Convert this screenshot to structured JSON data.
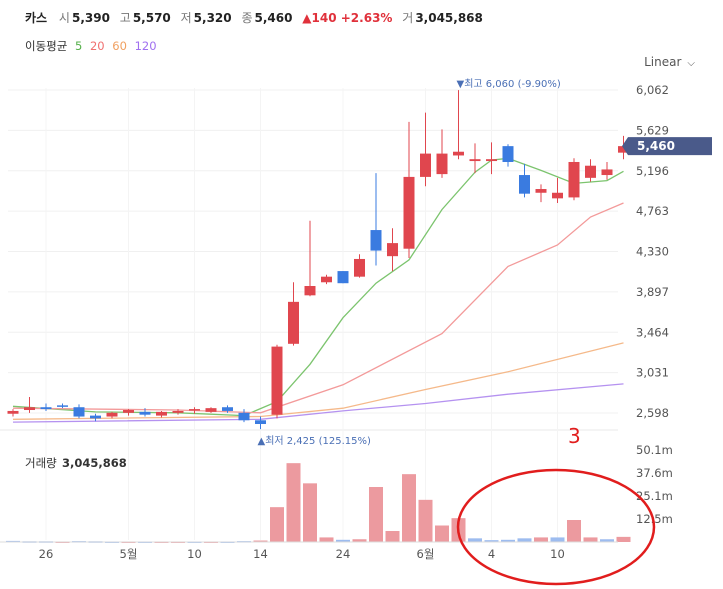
{
  "header": {
    "name": "카스",
    "open_label": "시",
    "open": "5,390",
    "high_label": "고",
    "high": "5,570",
    "low_label": "저",
    "low": "5,320",
    "close_label": "종",
    "close": "5,460",
    "change": "▲140 +2.63%",
    "volume_label": "거",
    "volume": "3,045,868"
  },
  "ma_legend": {
    "label": "이동평균",
    "items": [
      {
        "text": "5",
        "color": "#55b04a"
      },
      {
        "text": "20",
        "color": "#f07070"
      },
      {
        "text": "60",
        "color": "#f0a060"
      },
      {
        "text": "120",
        "color": "#a070f0"
      }
    ]
  },
  "scale_selector": {
    "label": "Linear",
    "icon": "chevron-down-icon"
  },
  "annotation": "3",
  "chart_data": {
    "type": "candlestick",
    "y_ticks": [
      "6,062",
      "5,629",
      "5,196",
      "4,763",
      "4,330",
      "3,897",
      "3,464",
      "3,031",
      "2,598"
    ],
    "ylim": [
      2440,
      6160
    ],
    "current_price_label": "5,460",
    "max_marker": "▼최고 6,060 (-9.90%)",
    "min_marker": "▲최저 2,425 (125.15%)",
    "x_tick_labels": [
      {
        "label": "26",
        "index": 2
      },
      {
        "label": "5월",
        "index": 7
      },
      {
        "label": "10",
        "index": 11
      },
      {
        "label": "14",
        "index": 15
      },
      {
        "label": "24",
        "index": 20
      },
      {
        "label": "6월",
        "index": 25
      },
      {
        "label": "4",
        "index": 29
      },
      {
        "label": "10",
        "index": 33
      }
    ],
    "candles": [
      {
        "o": 2590,
        "h": 2640,
        "l": 2560,
        "c": 2620
      },
      {
        "o": 2630,
        "h": 2770,
        "l": 2600,
        "c": 2660
      },
      {
        "o": 2660,
        "h": 2700,
        "l": 2620,
        "c": 2640
      },
      {
        "o": 2680,
        "h": 2700,
        "l": 2650,
        "c": 2670
      },
      {
        "o": 2660,
        "h": 2690,
        "l": 2540,
        "c": 2560
      },
      {
        "o": 2570,
        "h": 2590,
        "l": 2510,
        "c": 2540
      },
      {
        "o": 2560,
        "h": 2610,
        "l": 2540,
        "c": 2600
      },
      {
        "o": 2600,
        "h": 2640,
        "l": 2570,
        "c": 2630
      },
      {
        "o": 2610,
        "h": 2650,
        "l": 2560,
        "c": 2580
      },
      {
        "o": 2570,
        "h": 2620,
        "l": 2550,
        "c": 2610
      },
      {
        "o": 2600,
        "h": 2640,
        "l": 2580,
        "c": 2620
      },
      {
        "o": 2640,
        "h": 2660,
        "l": 2590,
        "c": 2640
      },
      {
        "o": 2610,
        "h": 2660,
        "l": 2600,
        "c": 2650
      },
      {
        "o": 2660,
        "h": 2680,
        "l": 2600,
        "c": 2620
      },
      {
        "o": 2600,
        "h": 2640,
        "l": 2500,
        "c": 2520
      },
      {
        "o": 2520,
        "h": 2560,
        "l": 2425,
        "c": 2480
      },
      {
        "o": 2580,
        "h": 3330,
        "l": 2540,
        "c": 3310
      },
      {
        "o": 3340,
        "h": 4000,
        "l": 3320,
        "c": 3790
      },
      {
        "o": 3860,
        "h": 4660,
        "l": 3850,
        "c": 3960
      },
      {
        "o": 4000,
        "h": 4080,
        "l": 3980,
        "c": 4060
      },
      {
        "o": 4120,
        "h": 4120,
        "l": 3990,
        "c": 3990
      },
      {
        "o": 4060,
        "h": 4300,
        "l": 4050,
        "c": 4250
      },
      {
        "o": 4560,
        "h": 5170,
        "l": 4180,
        "c": 4340
      },
      {
        "o": 4280,
        "h": 4580,
        "l": 4120,
        "c": 4420
      },
      {
        "o": 4360,
        "h": 5720,
        "l": 4260,
        "c": 5130
      },
      {
        "o": 5130,
        "h": 5820,
        "l": 5030,
        "c": 5380
      },
      {
        "o": 5160,
        "h": 5640,
        "l": 5120,
        "c": 5380
      },
      {
        "o": 5360,
        "h": 6060,
        "l": 5320,
        "c": 5400
      },
      {
        "o": 5300,
        "h": 5490,
        "l": 5170,
        "c": 5320
      },
      {
        "o": 5300,
        "h": 5500,
        "l": 5160,
        "c": 5320
      },
      {
        "o": 5460,
        "h": 5480,
        "l": 5240,
        "c": 5290
      },
      {
        "o": 5150,
        "h": 5270,
        "l": 4910,
        "c": 4950
      },
      {
        "o": 4960,
        "h": 5050,
        "l": 4860,
        "c": 5000
      },
      {
        "o": 4900,
        "h": 5120,
        "l": 4850,
        "c": 4960
      },
      {
        "o": 4910,
        "h": 5330,
        "l": 4880,
        "c": 5290
      },
      {
        "o": 5120,
        "h": 5320,
        "l": 5080,
        "c": 5250
      },
      {
        "o": 5150,
        "h": 5290,
        "l": 5100,
        "c": 5210
      },
      {
        "o": 5390,
        "h": 5570,
        "l": 5320,
        "c": 5460
      }
    ],
    "ma": {
      "ma5": [
        [
          0,
          2670
        ],
        [
          5,
          2610
        ],
        [
          10,
          2600
        ],
        [
          14,
          2570
        ],
        [
          16,
          2720
        ],
        [
          18,
          3120
        ],
        [
          20,
          3620
        ],
        [
          22,
          3990
        ],
        [
          24,
          4240
        ],
        [
          26,
          4780
        ],
        [
          28,
          5180
        ],
        [
          29,
          5310
        ],
        [
          30,
          5330
        ],
        [
          32,
          5200
        ],
        [
          34,
          5060
        ],
        [
          36,
          5090
        ],
        [
          37,
          5190
        ]
      ],
      "ma20": [
        [
          0,
          2650
        ],
        [
          10,
          2630
        ],
        [
          15,
          2600
        ],
        [
          20,
          2900
        ],
        [
          26,
          3450
        ],
        [
          30,
          4170
        ],
        [
          33,
          4400
        ],
        [
          35,
          4700
        ],
        [
          37,
          4850
        ]
      ],
      "ma60": [
        [
          0,
          2530
        ],
        [
          15,
          2560
        ],
        [
          20,
          2650
        ],
        [
          25,
          2850
        ],
        [
          30,
          3040
        ],
        [
          37,
          3350
        ]
      ],
      "ma120": [
        [
          0,
          2500
        ],
        [
          15,
          2530
        ],
        [
          20,
          2620
        ],
        [
          25,
          2700
        ],
        [
          30,
          2800
        ],
        [
          37,
          2910
        ]
      ]
    },
    "volume": {
      "label": "거래량",
      "value": "3,045,868",
      "y_ticks": [
        "50.1m",
        "37.6m",
        "25.1m",
        "12.5m"
      ],
      "ymax": 60,
      "bars": [
        {
          "v": 0.6,
          "up": false
        },
        {
          "v": 0.4,
          "up": false
        },
        {
          "v": 0.4,
          "up": false
        },
        {
          "v": 0.3,
          "up": true
        },
        {
          "v": 0.5,
          "up": false
        },
        {
          "v": 0.4,
          "up": false
        },
        {
          "v": 0.3,
          "up": false
        },
        {
          "v": 0.3,
          "up": true
        },
        {
          "v": 0.3,
          "up": false
        },
        {
          "v": 0.3,
          "up": true
        },
        {
          "v": 0.3,
          "up": true
        },
        {
          "v": 0.3,
          "up": false
        },
        {
          "v": 0.3,
          "up": true
        },
        {
          "v": 0.3,
          "up": false
        },
        {
          "v": 0.5,
          "up": false
        },
        {
          "v": 0.8,
          "up": true
        },
        {
          "v": 19,
          "up": true
        },
        {
          "v": 43,
          "up": true
        },
        {
          "v": 32,
          "up": true
        },
        {
          "v": 2.5,
          "up": true
        },
        {
          "v": 1.2,
          "up": false
        },
        {
          "v": 1.5,
          "up": true
        },
        {
          "v": 30,
          "up": true
        },
        {
          "v": 6,
          "up": true
        },
        {
          "v": 37,
          "up": true
        },
        {
          "v": 23,
          "up": true
        },
        {
          "v": 9,
          "up": true
        },
        {
          "v": 13,
          "up": true
        },
        {
          "v": 2,
          "up": false
        },
        {
          "v": 1,
          "up": false
        },
        {
          "v": 1.2,
          "up": false
        },
        {
          "v": 2,
          "up": false
        },
        {
          "v": 2.5,
          "up": true
        },
        {
          "v": 2.5,
          "up": false
        },
        {
          "v": 12,
          "up": true
        },
        {
          "v": 2.5,
          "up": true
        },
        {
          "v": 1.5,
          "up": false
        },
        {
          "v": 2.8,
          "up": true
        }
      ]
    }
  }
}
